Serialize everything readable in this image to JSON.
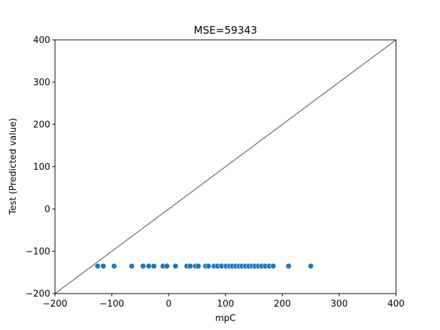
{
  "chart_data": {
    "type": "scatter",
    "title": "MSE=59343",
    "xlabel": "mpC",
    "ylabel": "Test (Predicted value)",
    "xlim": [
      -200,
      400
    ],
    "ylim": [
      -200,
      400
    ],
    "xticks": [
      -200,
      -100,
      0,
      100,
      200,
      300,
      400
    ],
    "yticks": [
      -200,
      -100,
      0,
      100,
      200,
      300,
      400
    ],
    "xtick_labels": [
      "−200",
      "−100",
      "0",
      "100",
      "200",
      "300",
      "400"
    ],
    "ytick_labels": [
      "−200",
      "−100",
      "0",
      "100",
      "200",
      "300",
      "400"
    ],
    "grid": false,
    "reference_line": {
      "type": "identity",
      "from": [
        -200,
        -200
      ],
      "to": [
        400,
        400
      ],
      "color": "#808080"
    },
    "point_color": "#1f77b4",
    "series": [
      {
        "x": [
          -125,
          -115,
          -96,
          -65,
          -45,
          -35,
          -26,
          -10,
          -3,
          12,
          32,
          38,
          47,
          52,
          65,
          70,
          80,
          86,
          93,
          101,
          107,
          112,
          118,
          124,
          129,
          135,
          141,
          147,
          152,
          158,
          164,
          170,
          177,
          184,
          211,
          250
        ],
        "y": [
          -135,
          -135,
          -135,
          -135,
          -135,
          -135,
          -135,
          -135,
          -135,
          -135,
          -135,
          -135,
          -135,
          -135,
          -135,
          -135,
          -135,
          -135,
          -135,
          -135,
          -135,
          -135,
          -135,
          -135,
          -135,
          -135,
          -135,
          -135,
          -135,
          -135,
          -135,
          -135,
          -135,
          -135,
          -135,
          -135
        ]
      }
    ]
  }
}
